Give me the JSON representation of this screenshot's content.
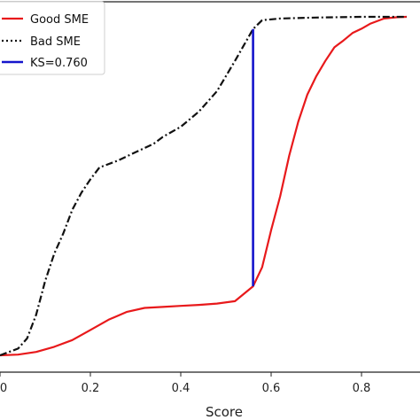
{
  "chart_data": {
    "type": "line",
    "xlabel": "Score",
    "ylabel": "",
    "title": "",
    "xlim": [
      0.0,
      0.9
    ],
    "ylim": [
      0.0,
      1.0
    ],
    "x_ticks": [
      {
        "value": 0.0,
        "label": "0"
      },
      {
        "value": 0.2,
        "label": "0.2"
      },
      {
        "value": 0.4,
        "label": "0.4"
      },
      {
        "value": 0.6,
        "label": "0.6"
      },
      {
        "value": 0.8,
        "label": "0.8"
      }
    ],
    "grid": false,
    "legend_position": "top-left",
    "series": [
      {
        "name": "Good SME",
        "color": "#e8191b",
        "style": "solid",
        "points": [
          [
            0.0,
            0.0
          ],
          [
            0.04,
            0.002
          ],
          [
            0.08,
            0.01
          ],
          [
            0.12,
            0.025
          ],
          [
            0.16,
            0.045
          ],
          [
            0.2,
            0.075
          ],
          [
            0.24,
            0.105
          ],
          [
            0.28,
            0.128
          ],
          [
            0.32,
            0.14
          ],
          [
            0.36,
            0.143
          ],
          [
            0.4,
            0.146
          ],
          [
            0.44,
            0.149
          ],
          [
            0.48,
            0.153
          ],
          [
            0.52,
            0.16
          ],
          [
            0.56,
            0.204
          ],
          [
            0.58,
            0.26
          ],
          [
            0.6,
            0.37
          ],
          [
            0.62,
            0.47
          ],
          [
            0.64,
            0.59
          ],
          [
            0.66,
            0.69
          ],
          [
            0.68,
            0.77
          ],
          [
            0.7,
            0.825
          ],
          [
            0.72,
            0.87
          ],
          [
            0.74,
            0.91
          ],
          [
            0.76,
            0.93
          ],
          [
            0.78,
            0.952
          ],
          [
            0.8,
            0.965
          ],
          [
            0.82,
            0.98
          ],
          [
            0.85,
            0.995
          ],
          [
            0.88,
            0.999
          ],
          [
            0.9,
            1.0
          ]
        ]
      },
      {
        "name": "Bad SME",
        "color": "#111111",
        "style": "dashdot",
        "points": [
          [
            0.0,
            0.0
          ],
          [
            0.04,
            0.02
          ],
          [
            0.06,
            0.05
          ],
          [
            0.08,
            0.12
          ],
          [
            0.1,
            0.22
          ],
          [
            0.12,
            0.3
          ],
          [
            0.14,
            0.36
          ],
          [
            0.16,
            0.43
          ],
          [
            0.18,
            0.48
          ],
          [
            0.2,
            0.52
          ],
          [
            0.22,
            0.555
          ],
          [
            0.26,
            0.575
          ],
          [
            0.3,
            0.6
          ],
          [
            0.34,
            0.625
          ],
          [
            0.36,
            0.645
          ],
          [
            0.4,
            0.675
          ],
          [
            0.44,
            0.72
          ],
          [
            0.48,
            0.78
          ],
          [
            0.52,
            0.87
          ],
          [
            0.56,
            0.964
          ],
          [
            0.58,
            0.99
          ],
          [
            0.62,
            0.995
          ],
          [
            0.7,
            0.998
          ],
          [
            0.8,
            1.0
          ],
          [
            0.9,
            1.0
          ]
        ]
      }
    ],
    "ks_line": {
      "name": "KS=0.760",
      "color": "#1515cc",
      "x": 0.56,
      "y_bottom": 0.204,
      "y_top": 0.964
    }
  }
}
